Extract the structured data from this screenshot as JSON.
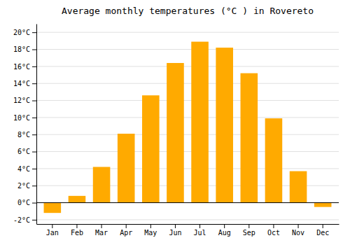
{
  "chart_data": {
    "type": "bar",
    "title": "Average monthly temperatures (°C ) in Rovereto",
    "categories": [
      "Jan",
      "Feb",
      "Mar",
      "Apr",
      "May",
      "Jun",
      "Jul",
      "Aug",
      "Sep",
      "Oct",
      "Nov",
      "Dec"
    ],
    "values": [
      -1.2,
      0.8,
      4.2,
      8.1,
      12.6,
      16.4,
      18.9,
      18.2,
      15.2,
      9.9,
      3.7,
      -0.5
    ],
    "color": "#FFAA00",
    "ylim": [
      -2.5,
      21
    ],
    "yticks": [
      {
        "value": -2,
        "label": "-2°C"
      },
      {
        "value": 0,
        "label": "0°C"
      },
      {
        "value": 2,
        "label": "2°C"
      },
      {
        "value": 4,
        "label": "4°C"
      },
      {
        "value": 6,
        "label": "6°C"
      },
      {
        "value": 8,
        "label": "8°C"
      },
      {
        "value": 10,
        "label": "10°C"
      },
      {
        "value": 12,
        "label": "12°C"
      },
      {
        "value": 14,
        "label": "14°C"
      },
      {
        "value": 16,
        "label": "16°C"
      },
      {
        "value": 18,
        "label": "18°C"
      },
      {
        "value": 20,
        "label": "20°C"
      }
    ],
    "grid": true
  }
}
